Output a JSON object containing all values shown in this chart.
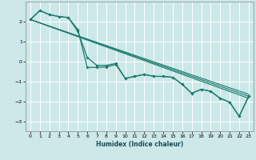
{
  "xlabel": "Humidex (Indice chaleur)",
  "background_color": "#cce8e8",
  "grid_color": "#ffffff",
  "line_color": "#1a7a6e",
  "xlim": [
    -0.5,
    23.5
  ],
  "ylim": [
    -3.5,
    3.0
  ],
  "yticks": [
    -3,
    -2,
    -1,
    0,
    1,
    2
  ],
  "xticks": [
    0,
    1,
    2,
    3,
    4,
    5,
    6,
    7,
    8,
    9,
    10,
    11,
    12,
    13,
    14,
    15,
    16,
    17,
    18,
    19,
    20,
    21,
    22,
    23
  ],
  "series1_x": [
    0,
    1,
    2,
    3,
    4,
    5,
    6,
    7,
    8,
    9,
    10,
    11,
    12,
    13,
    14,
    15,
    16,
    17,
    18,
    19,
    20,
    21,
    22,
    23
  ],
  "series1_y": [
    2.1,
    2.55,
    2.35,
    2.25,
    2.2,
    1.6,
    -0.3,
    -0.3,
    -0.28,
    -0.15,
    -0.85,
    -0.75,
    -0.65,
    -0.75,
    -0.75,
    -0.8,
    -1.15,
    -1.6,
    -1.4,
    -1.5,
    -1.85,
    -2.05,
    -2.75,
    -1.75
  ],
  "series2_x": [
    0,
    1,
    2,
    3,
    4,
    5,
    6,
    7,
    8,
    9,
    10,
    11,
    12,
    13,
    14,
    15,
    16,
    17,
    18,
    19,
    20,
    21,
    22,
    23
  ],
  "series2_y": [
    2.1,
    2.55,
    2.35,
    2.25,
    2.2,
    1.5,
    0.2,
    -0.2,
    -0.2,
    -0.1,
    -0.85,
    -0.75,
    -0.65,
    -0.75,
    -0.75,
    -0.8,
    -1.15,
    -1.6,
    -1.4,
    -1.5,
    -1.85,
    -2.05,
    -2.75,
    -1.75
  ],
  "line1_x": [
    0,
    23
  ],
  "line1_y": [
    2.1,
    -1.85
  ],
  "line2_x": [
    0,
    23
  ],
  "line2_y": [
    2.1,
    -1.65
  ],
  "line3_x": [
    0,
    23
  ],
  "line3_y": [
    2.1,
    -1.75
  ]
}
